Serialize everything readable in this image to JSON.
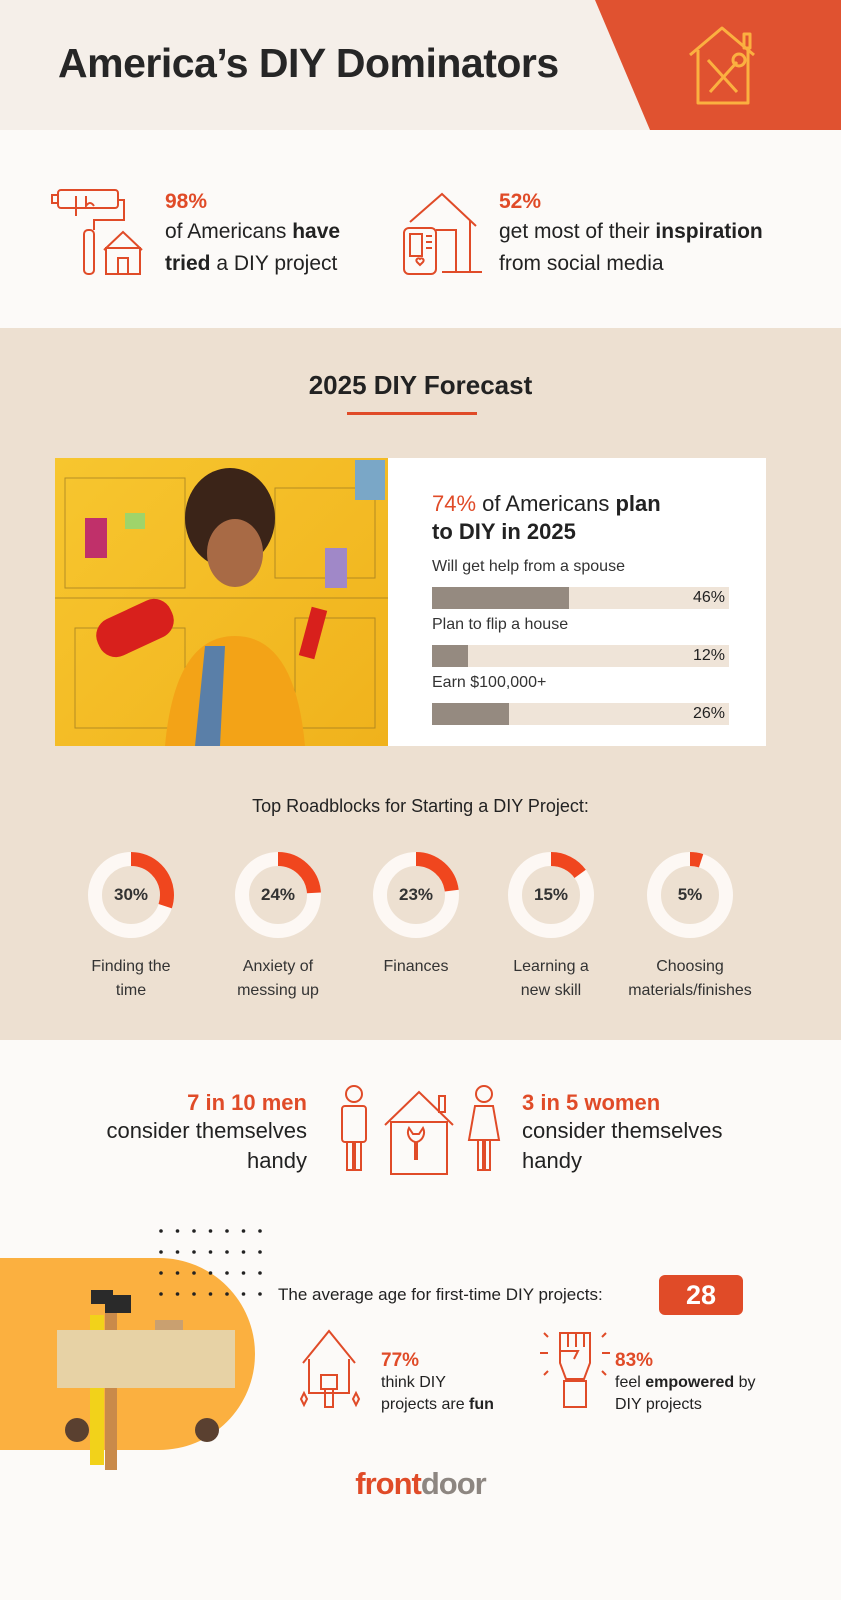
{
  "header": {
    "title": "America’s DIY Dominators",
    "icon": "house-tools-icon",
    "accent": "#e05230",
    "icon_color": "#fbb040"
  },
  "stats": [
    {
      "pct": "98%",
      "line1_pre": "of Americans ",
      "line1_bold": "have",
      "line2_bold": "tried",
      "line2_post": " a DIY project",
      "icon": "paint-roller-house-icon"
    },
    {
      "pct": "52%",
      "line1_pre": "get most of their ",
      "line1_bold": "inspiration",
      "line2_post": "from social media",
      "icon": "phone-house-icon"
    }
  ],
  "forecast": {
    "title": "2025 DIY Forecast",
    "headline_pct": "74%",
    "headline_mid": " of Americans ",
    "headline_bold1": "plan",
    "headline_bold2": "to DIY in 2025",
    "bars": [
      {
        "label": "Will get help from a spouse",
        "value": 46,
        "pct": "46%"
      },
      {
        "label": "Plan to flip a house",
        "value": 12,
        "pct": "12%"
      },
      {
        "label": "Earn $100,000+",
        "value": 26,
        "pct": "26%"
      }
    ],
    "bar_color": "#958a80",
    "roadblocks_title": "Top Roadblocks for Starting a DIY Project:",
    "roadblocks": [
      {
        "value": 30,
        "pct": "30%",
        "l1": "Finding the",
        "l2": "time"
      },
      {
        "value": 24,
        "pct": "24%",
        "l1": "Anxiety of",
        "l2": "messing up"
      },
      {
        "value": 23,
        "pct": "23%",
        "l1": "Finances",
        "l2": ""
      },
      {
        "value": 15,
        "pct": "15%",
        "l1": "Learning a",
        "l2": "new skill"
      },
      {
        "value": 5,
        "pct": "5%",
        "l1": "Choosing",
        "l2": "materials/finishes"
      }
    ]
  },
  "handy": {
    "men": {
      "headline": "7 in 10 men",
      "l1": "consider themselves",
      "l2": "handy"
    },
    "women": {
      "headline": "3 in 5 women",
      "l1": "consider themselves",
      "l2": "handy"
    }
  },
  "age": {
    "label": "The average age for first-time DIY projects:",
    "value": "28"
  },
  "fun": {
    "pct": "77%",
    "l1": "think DIY",
    "l2_pre": "projects are ",
    "l2_bold": "fun"
  },
  "empowered": {
    "pct": "83%",
    "l1_pre": "feel ",
    "l1_bold": "empowered",
    "l1_post": " by",
    "l2": "DIY projects"
  },
  "logo": {
    "part1": "front",
    "part2": "door"
  }
}
